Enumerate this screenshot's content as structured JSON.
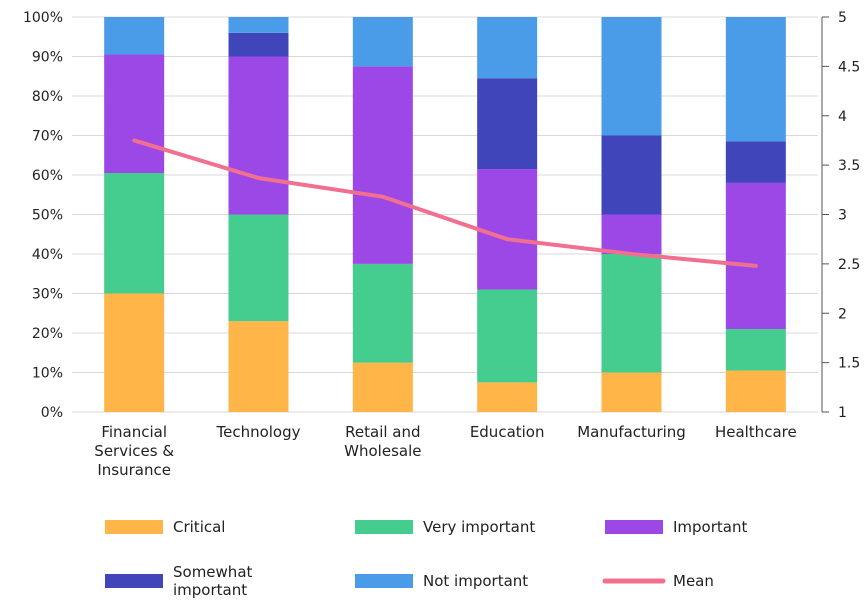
{
  "chart_data": {
    "type": "bar",
    "stacked": true,
    "categories": [
      [
        "Financial",
        "Services &",
        "Insurance"
      ],
      [
        "Technology"
      ],
      [
        "Retail and",
        "Wholesale"
      ],
      [
        "Education"
      ],
      [
        "Manufacturing"
      ],
      [
        "Healthcare"
      ]
    ],
    "series": [
      {
        "name": "Critical",
        "color": "#FFB547",
        "values": [
          30,
          23,
          12.5,
          7.5,
          10,
          10.5
        ]
      },
      {
        "name": "Very important",
        "color": "#45CD90",
        "values": [
          30.5,
          27,
          25,
          23.5,
          30,
          10.5
        ]
      },
      {
        "name": "Important",
        "color": "#9B48E6",
        "values": [
          30,
          40,
          50,
          30.5,
          10,
          37
        ]
      },
      {
        "name": "Somewhat important",
        "color": "#4045BA",
        "values": [
          0,
          6,
          0,
          23,
          20,
          10.5
        ]
      },
      {
        "name": "Not important",
        "color": "#4A9BE8",
        "values": [
          9.5,
          4,
          12.5,
          15.5,
          30,
          31.5
        ]
      }
    ],
    "line": {
      "name": "Mean",
      "color": "#F2708F",
      "values": [
        3.75,
        3.37,
        3.18,
        2.75,
        2.6,
        2.48
      ]
    },
    "yaxis_left": {
      "min": 0,
      "max": 100,
      "ticks": [
        "0%",
        "10%",
        "20%",
        "30%",
        "40%",
        "50%",
        "60%",
        "70%",
        "80%",
        "90%",
        "100%"
      ]
    },
    "yaxis_right": {
      "min": 1,
      "max": 5,
      "ticks": [
        "1",
        "1.5",
        "2",
        "2.5",
        "3",
        "3.5",
        "4",
        "4.5",
        "5"
      ]
    },
    "grid": true,
    "legend": {
      "position": "bottom",
      "entries": [
        {
          "label": [
            "Critical"
          ],
          "color": "#FFB547",
          "type": "bar"
        },
        {
          "label": [
            "Very important"
          ],
          "color": "#45CD90",
          "type": "bar"
        },
        {
          "label": [
            "Important"
          ],
          "color": "#9B48E6",
          "type": "bar"
        },
        {
          "label": [
            "Somewhat",
            "important"
          ],
          "color": "#4045BA",
          "type": "bar"
        },
        {
          "label": [
            "Not important"
          ],
          "color": "#4A9BE8",
          "type": "bar"
        },
        {
          "label": [
            "Mean"
          ],
          "color": "#F2708F",
          "type": "line"
        }
      ]
    }
  }
}
